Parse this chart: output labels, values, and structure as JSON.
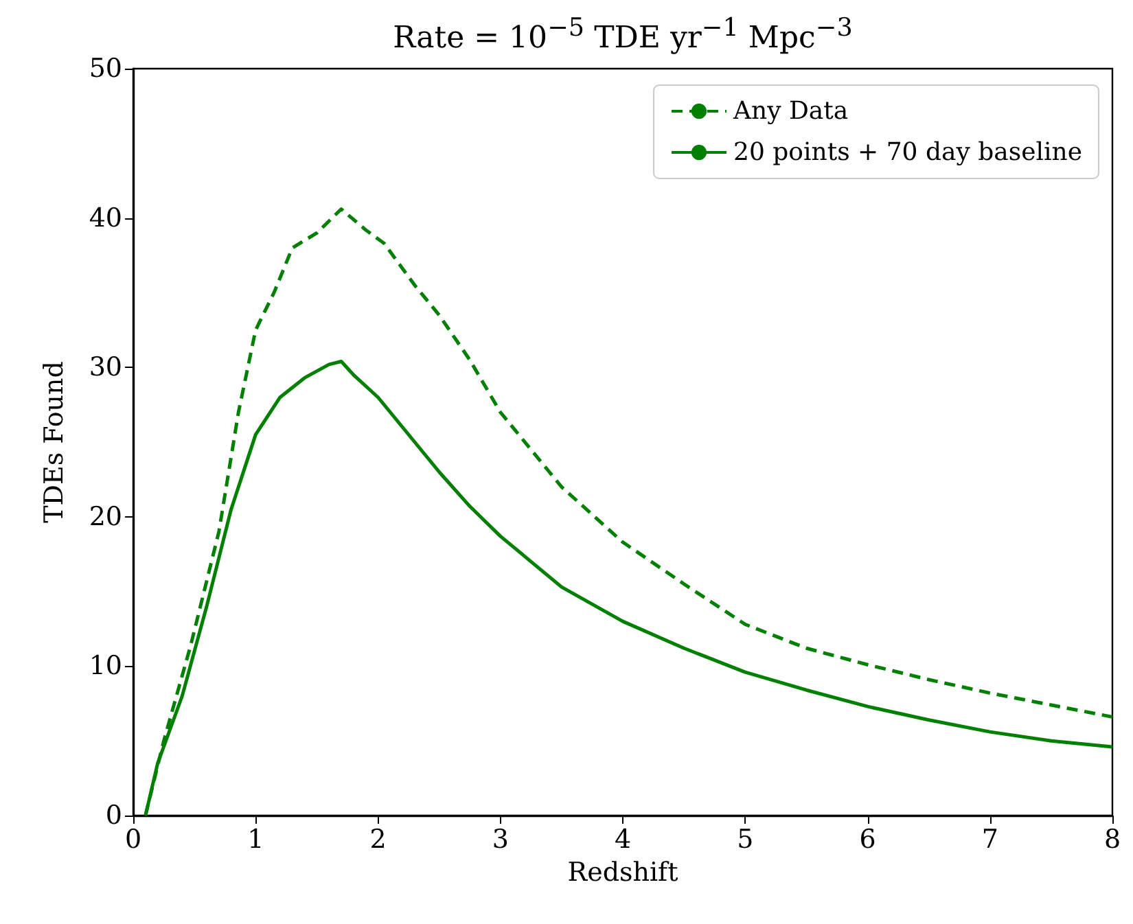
{
  "chart_data": {
    "type": "line",
    "title": "Rate = 10$^{−5}$ TDE yr$^{−1}$ Mpc$^{−3}$",
    "xlabel": "Redshift",
    "ylabel": "TDEs Found",
    "xlim": [
      0,
      8
    ],
    "xticks": [
      0,
      1,
      2,
      3,
      4,
      5,
      6,
      7,
      8
    ],
    "ylim": [
      0,
      50
    ],
    "yticks": [
      0,
      10,
      20,
      30,
      40,
      50
    ],
    "grid": false,
    "legend": "top right",
    "marker": "none",
    "series": [
      {
        "name": "Any Data",
        "color": "#008000",
        "line_style": "dashed",
        "x": [
          0.1,
          0.25,
          0.47,
          0.7,
          0.86,
          1.0,
          1.15,
          1.3,
          1.5,
          1.7,
          1.9,
          2.05,
          2.3,
          2.5,
          2.75,
          3.0,
          3.5,
          4.0,
          4.5,
          5.0,
          5.5,
          6.0,
          6.5,
          7.0,
          7.5,
          8.0
        ],
        "values": [
          0,
          5,
          11.4,
          19,
          27,
          32.5,
          35,
          38,
          39,
          40.6,
          39.2,
          38.3,
          35.5,
          33.5,
          30.5,
          27,
          22,
          18.3,
          15.5,
          12.8,
          11.2,
          10.1,
          9.1,
          8.2,
          7.4,
          6.6
        ]
      },
      {
        "name": "20 points + 70 day baseline",
        "color": "#008000",
        "line_style": "solid",
        "x": [
          0.1,
          0.2,
          0.4,
          0.6,
          0.8,
          1.0,
          1.2,
          1.4,
          1.6,
          1.7,
          1.8,
          2.0,
          2.2,
          2.5,
          2.75,
          3.0,
          3.5,
          4.0,
          4.5,
          5.0,
          5.5,
          6.0,
          6.5,
          7.0,
          7.5,
          8.0
        ],
        "values": [
          0,
          3.5,
          8,
          14,
          20.5,
          25.5,
          28,
          29.3,
          30.2,
          30.4,
          29.5,
          28,
          26,
          23,
          20.7,
          18.7,
          15.3,
          13,
          11.2,
          9.6,
          8.4,
          7.3,
          6.4,
          5.6,
          5,
          4.6
        ]
      }
    ]
  }
}
